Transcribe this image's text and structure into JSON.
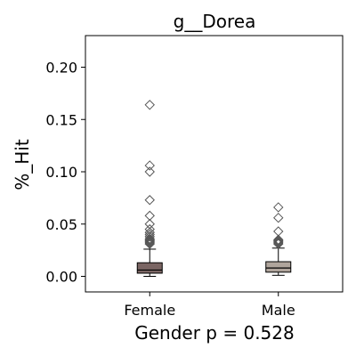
{
  "chart_data": {
    "type": "box",
    "title": "g__Dorea",
    "xlabel": "Gender p = 0.528",
    "ylabel": "%_Hit",
    "ylim": [
      -0.015,
      0.23
    ],
    "yticks": [
      "0.00",
      "0.05",
      "0.10",
      "0.15",
      "0.20"
    ],
    "ytick_values": [
      0.0,
      0.05,
      0.1,
      0.15,
      0.2
    ],
    "categories": [
      "Female",
      "Male"
    ],
    "colors": {
      "Female": "#7a6563",
      "Male": "#b0a59c",
      "outlier": "#555555"
    },
    "grid": false,
    "boxes": [
      {
        "name": "Female",
        "whisker_low": 0.0,
        "q1": 0.003,
        "median": 0.006,
        "q3": 0.013,
        "whisker_high": 0.026,
        "outliers": [
          0.031,
          0.032,
          0.033,
          0.034,
          0.035,
          0.036,
          0.038,
          0.04,
          0.042,
          0.045,
          0.05,
          0.058,
          0.073,
          0.1,
          0.106,
          0.164
        ]
      },
      {
        "name": "Male",
        "whisker_low": 0.001,
        "q1": 0.004,
        "median": 0.008,
        "q3": 0.014,
        "whisker_high": 0.027,
        "outliers": [
          0.031,
          0.032,
          0.033,
          0.034,
          0.035,
          0.043,
          0.056,
          0.066
        ]
      }
    ]
  }
}
